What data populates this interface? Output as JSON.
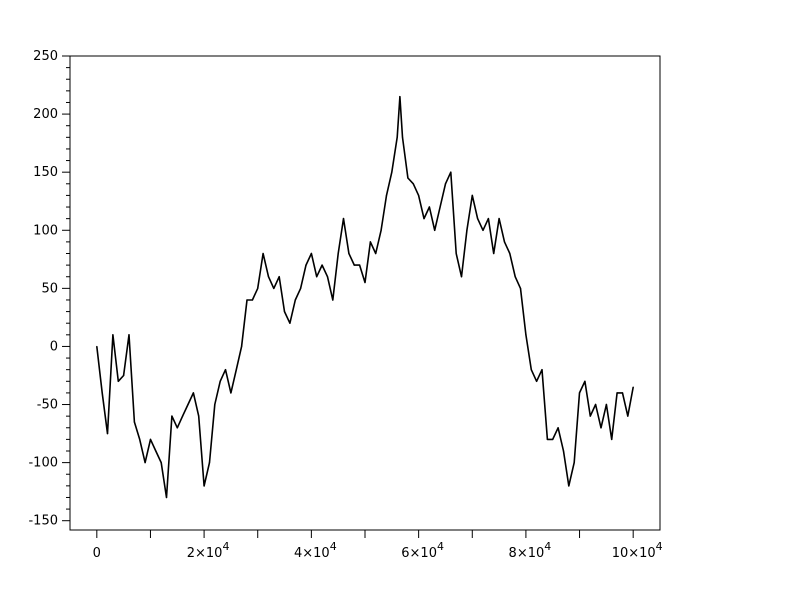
{
  "chart_data": {
    "type": "line",
    "title": "",
    "xlabel": "",
    "ylabel": "",
    "xlim": [
      -5000,
      105000
    ],
    "ylim": [
      -158,
      250
    ],
    "grid": false,
    "line_color": "#000000",
    "x_ticks": [
      0,
      20000,
      40000,
      60000,
      80000,
      100000
    ],
    "x_tick_labels": [
      "0",
      "2×10^4",
      "4×10^4",
      "6×10^4",
      "8×10^4",
      "10×10^4"
    ],
    "y_ticks": [
      -150,
      -100,
      -50,
      0,
      50,
      100,
      150,
      200,
      250
    ],
    "y_tick_labels": [
      "-150",
      "-100",
      "-50",
      "0",
      "50",
      "100",
      "150",
      "200",
      "250"
    ],
    "series": [
      {
        "x": [
          0,
          1000,
          2000,
          3000,
          4000,
          5000,
          6000,
          7000,
          8000,
          9000,
          10000,
          11000,
          12000,
          13000,
          14000,
          15000,
          16000,
          17000,
          18000,
          19000,
          20000,
          21000,
          22000,
          23000,
          24000,
          25000,
          26000,
          27000,
          28000,
          29000,
          30000,
          31000,
          32000,
          33000,
          34000,
          35000,
          36000,
          37000,
          38000,
          39000,
          40000,
          41000,
          42000,
          43000,
          44000,
          45000,
          46000,
          47000,
          48000,
          49000,
          50000,
          51000,
          52000,
          53000,
          54000,
          55000,
          56000,
          56500,
          57000,
          58000,
          59000,
          60000,
          61000,
          62000,
          63000,
          64000,
          65000,
          66000,
          67000,
          68000,
          69000,
          70000,
          71000,
          72000,
          73000,
          74000,
          75000,
          76000,
          77000,
          78000,
          79000,
          80000,
          81000,
          82000,
          83000,
          84000,
          85000,
          86000,
          87000,
          88000,
          89000,
          90000,
          91000,
          92000,
          93000,
          94000,
          95000,
          96000,
          97000,
          98000,
          99000,
          100000
        ],
        "y": [
          0,
          -40,
          -75,
          10,
          -30,
          -25,
          10,
          -65,
          -80,
          -100,
          -80,
          -90,
          -100,
          -130,
          -60,
          -70,
          -60,
          -50,
          -40,
          -60,
          -120,
          -100,
          -50,
          -30,
          -20,
          -40,
          -20,
          0,
          40,
          40,
          50,
          80,
          60,
          50,
          60,
          30,
          20,
          40,
          50,
          70,
          80,
          60,
          70,
          60,
          40,
          80,
          110,
          80,
          70,
          70,
          55,
          90,
          80,
          100,
          130,
          150,
          180,
          215,
          180,
          145,
          140,
          130,
          110,
          120,
          100,
          120,
          140,
          150,
          80,
          60,
          100,
          130,
          110,
          100,
          110,
          80,
          110,
          90,
          80,
          60,
          50,
          10,
          -20,
          -30,
          -20,
          -80,
          -80,
          -70,
          -90,
          -120,
          -100,
          -40,
          -30,
          -60,
          -50,
          -70,
          -50,
          -80,
          -40,
          -40,
          -60,
          -35
        ]
      }
    ]
  }
}
